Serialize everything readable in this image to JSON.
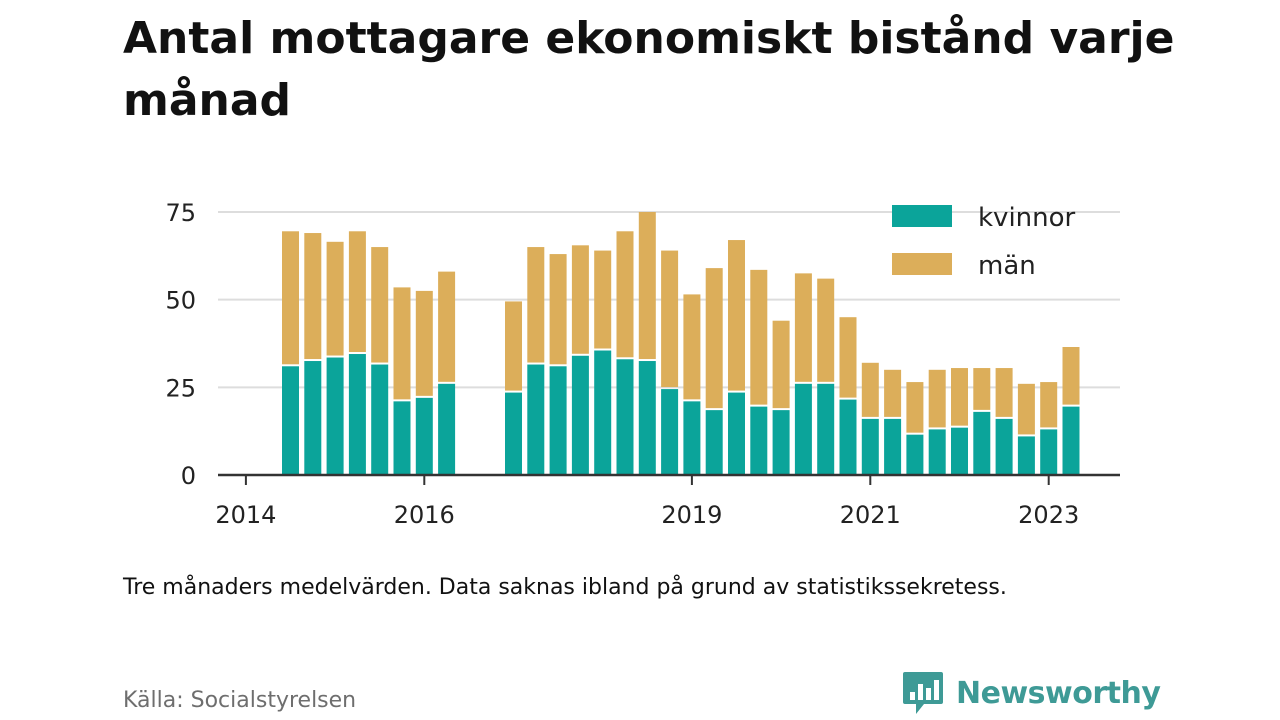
{
  "title": "Antal mottagare ekonomiskt bistånd varje månad",
  "note": "Tre månaders medelvärden. Data saknas ibland på grund av statistikssekretess.",
  "source": "Källa: Socialstyrelsen",
  "brand": {
    "name": "Newsworthy",
    "icon": "bar-chart-speech-bubble-icon",
    "color": "#3e9a96"
  },
  "colors": {
    "kvinnor": "#0ba49a",
    "man": "#dcae5a",
    "grid": "#dddddd",
    "axis": "#333333"
  },
  "chart_data": {
    "type": "bar",
    "stacked": true,
    "title": "Antal mottagare ekonomiskt bistånd varje månad",
    "x": [
      "2014-07",
      "2014-10",
      "2015-01",
      "2015-04",
      "2015-07",
      "2015-10",
      "2016-01",
      "2016-04",
      "2016-07",
      "2016-10",
      "2017-01",
      "2017-04",
      "2017-07",
      "2017-10",
      "2018-01",
      "2018-04",
      "2018-07",
      "2018-10",
      "2019-01",
      "2019-04",
      "2019-07",
      "2019-10",
      "2020-01",
      "2020-04",
      "2020-07",
      "2020-10",
      "2021-01",
      "2021-04",
      "2021-07",
      "2021-10",
      "2022-01",
      "2022-04",
      "2022-07",
      "2022-10",
      "2023-01",
      "2023-04"
    ],
    "series": [
      {
        "name": "kvinnor",
        "color": "#0ba49a",
        "values": [
          31,
          32.5,
          33.5,
          34.5,
          31.5,
          21,
          22,
          26,
          null,
          null,
          23.5,
          31.5,
          31,
          34,
          35.5,
          33,
          32.5,
          24.5,
          21,
          18.5,
          23.5,
          19.5,
          18.5,
          26,
          26,
          21.5,
          16,
          16,
          11.5,
          13,
          13.5,
          18,
          16,
          11,
          13,
          19.5
        ]
      },
      {
        "name": "män",
        "color": "#dcae5a",
        "values": [
          38.5,
          36.5,
          33,
          35,
          33.5,
          32.5,
          30.5,
          32,
          null,
          null,
          26,
          33.5,
          32,
          31.5,
          28.5,
          36.5,
          42.5,
          39.5,
          30.5,
          40.5,
          43.5,
          39,
          25.5,
          31.5,
          30,
          23.5,
          16,
          14,
          15,
          17,
          17,
          12.5,
          14.5,
          15,
          13.5,
          17
        ]
      }
    ],
    "legend": [
      "kvinnor",
      "män"
    ],
    "legend_position": "top-right",
    "x_ticks": [
      "2014",
      "2016",
      "2019",
      "2021",
      "2023"
    ],
    "y_ticks": [
      0,
      25,
      50,
      75
    ],
    "ylim": [
      0,
      75
    ],
    "grid": true
  }
}
